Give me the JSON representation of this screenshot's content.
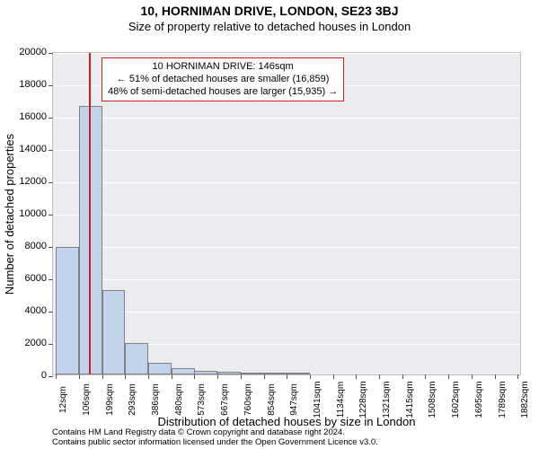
{
  "chart": {
    "type": "histogram",
    "title": "10, HORNIMAN DRIVE, LONDON, SE23 3BJ",
    "subtitle": "Size of property relative to detached houses in London",
    "y_label": "Number of detached properties",
    "x_label": "Distribution of detached houses by size in London",
    "background_color": "#ffffff",
    "plot_bg_color": "#eaecef",
    "plot_border_color": "#c0c0c0",
    "grid_color": "#ffffff",
    "bar_fill_color": "#c2d4eb",
    "bar_border_color": "#808080",
    "marker_color": "#d01c1c",
    "text_color": "#000000",
    "title_fontsize": 14,
    "subtitle_fontsize": 13,
    "axis_label_fontsize": 13,
    "tick_fontsize": 11,
    "xtick_fontsize": 10,
    "callout_fontsize": 11,
    "x_range_min": 0,
    "x_range_max": 1900,
    "xtick_labels": [
      "12sqm",
      "106sqm",
      "199sqm",
      "293sqm",
      "386sqm",
      "480sqm",
      "573sqm",
      "667sqm",
      "760sqm",
      "854sqm",
      "947sqm",
      "1041sqm",
      "1134sqm",
      "1228sqm",
      "1321sqm",
      "1415sqm",
      "1508sqm",
      "1602sqm",
      "1695sqm",
      "1789sqm",
      "1882sqm"
    ],
    "xtick_values": [
      12,
      106,
      199,
      293,
      386,
      480,
      573,
      667,
      760,
      854,
      947,
      1041,
      1134,
      1228,
      1321,
      1415,
      1508,
      1602,
      1695,
      1789,
      1882
    ],
    "ylim": [
      0,
      20000
    ],
    "ytick_step": 2000,
    "yticks": [
      0,
      2000,
      4000,
      6000,
      8000,
      10000,
      12000,
      14000,
      16000,
      18000,
      20000
    ],
    "bars": [
      {
        "x_center": 59,
        "width_sqm": 94,
        "value": 7900
      },
      {
        "x_center": 152,
        "width_sqm": 94,
        "value": 16600
      },
      {
        "x_center": 246,
        "width_sqm": 94,
        "value": 5200
      },
      {
        "x_center": 339,
        "width_sqm": 94,
        "value": 1950
      },
      {
        "x_center": 433,
        "width_sqm": 94,
        "value": 750
      },
      {
        "x_center": 527,
        "width_sqm": 94,
        "value": 400
      },
      {
        "x_center": 620,
        "width_sqm": 94,
        "value": 250
      },
      {
        "x_center": 714,
        "width_sqm": 94,
        "value": 180
      },
      {
        "x_center": 807,
        "width_sqm": 94,
        "value": 130
      },
      {
        "x_center": 901,
        "width_sqm": 94,
        "value": 90
      },
      {
        "x_center": 994,
        "width_sqm": 94,
        "value": 60
      }
    ],
    "marker": {
      "value_sqm": 146,
      "lines": [
        "10 HORNIMAN DRIVE: 146sqm",
        "← 51% of detached houses are smaller (16,859)",
        "48% of semi-detached houses are larger (15,935) →"
      ]
    },
    "attribution_line1": "Contains HM Land Registry data © Crown copyright and database right 2024.",
    "attribution_line2": "Contains public sector information licensed under the Open Government Licence v3.0."
  }
}
